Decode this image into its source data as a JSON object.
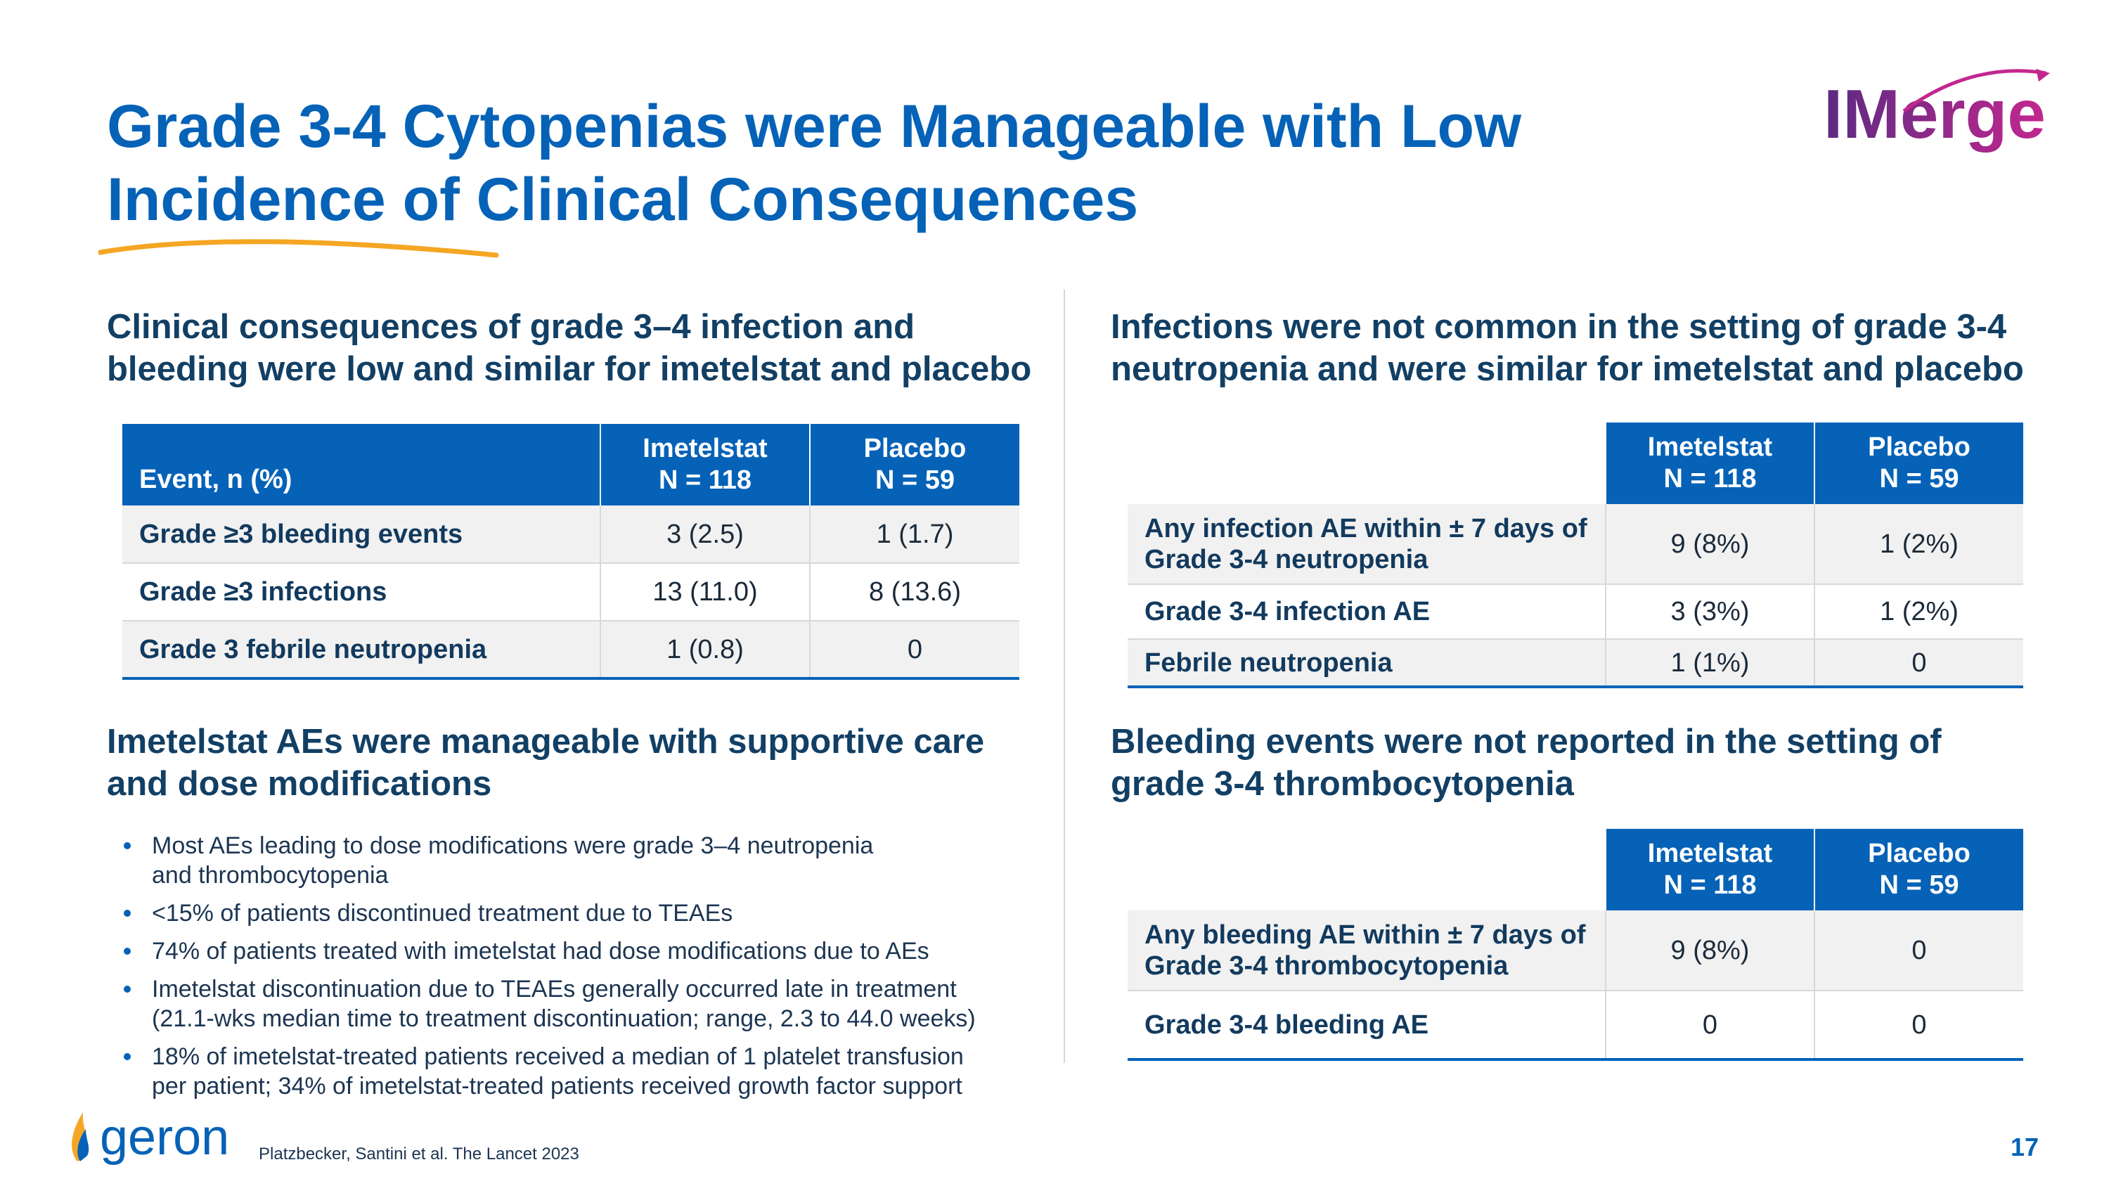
{
  "slide": {
    "title_lines": [
      "Grade 3-4 Cytopenias were Manageable with Low",
      "Incidence of Clinical Consequences"
    ],
    "logo_text": "IMerge",
    "page_number": "17",
    "citation": "Platzbecker, Santini et al. The Lancet 2023",
    "company_logo_text": "geron",
    "colors": {
      "title_blue": "#0562b7",
      "heading_navy": "#123f64",
      "accent_orange": "#f5a623",
      "logo_purple": "#5b2b82",
      "logo_magenta": "#c2278f"
    }
  },
  "top_left": {
    "heading_lines": [
      "Clinical consequences of grade 3–4 infection and",
      "bleeding were low and similar for imetelstat and placebo"
    ],
    "table": {
      "headers": {
        "event": "Event, n (%)",
        "col1_line1": "Imetelstat",
        "col1_line2": "N = 118",
        "col2_line1": "Placebo",
        "col2_line2": "N = 59"
      },
      "rows": [
        {
          "label": "Grade ≥3 bleeding events",
          "imetelstat": "3 (2.5)",
          "placebo": "1 (1.7)"
        },
        {
          "label": "Grade ≥3 infections",
          "imetelstat": "13 (11.0)",
          "placebo": "8 (13.6)"
        },
        {
          "label": "Grade 3 febrile neutropenia",
          "imetelstat": "1 (0.8)",
          "placebo": "0"
        }
      ]
    }
  },
  "top_right": {
    "heading_lines": [
      "Infections were not common in the setting of grade 3-4",
      "neutropenia and were similar for imetelstat and placebo"
    ],
    "table": {
      "headers": {
        "col1_line1": "Imetelstat",
        "col1_line2": "N = 118",
        "col2_line1": "Placebo",
        "col2_line2": "N = 59"
      },
      "rows": [
        {
          "label_line1": "Any infection AE within ± 7 days of",
          "label_line2": "Grade 3-4 neutropenia",
          "imetelstat": "9 (8%)",
          "placebo": "1 (2%)"
        },
        {
          "label_line1": "Grade 3-4 infection AE",
          "imetelstat": "3 (3%)",
          "placebo": "1 (2%)"
        },
        {
          "label_line1": "Febrile neutropenia",
          "imetelstat": "1 (1%)",
          "placebo": "0"
        }
      ]
    }
  },
  "bottom_left": {
    "heading_lines": [
      "Imetelstat AEs were manageable with supportive care",
      "and dose modifications"
    ],
    "bullets": [
      {
        "line1": "Most AEs leading to dose modifications were grade 3–4 neutropenia",
        "line2": "and thrombocytopenia"
      },
      {
        "line1": "<15% of patients discontinued treatment due to TEAEs"
      },
      {
        "line1": "74% of patients treated with imetelstat had dose modifications due to AEs"
      },
      {
        "line1": "Imetelstat discontinuation due to TEAEs generally occurred late in treatment",
        "line2": "(21.1-wks median time to treatment discontinuation; range, 2.3 to 44.0 weeks)"
      },
      {
        "line1": "18% of imetelstat-treated patients received a median of 1 platelet transfusion",
        "line2": "per patient; 34% of imetelstat-treated patients received growth factor support"
      }
    ]
  },
  "bottom_right": {
    "heading_lines": [
      "Bleeding events were not reported in the setting of",
      "grade 3-4 thrombocytopenia"
    ],
    "table": {
      "headers": {
        "col1_line1": "Imetelstat",
        "col1_line2": "N = 118",
        "col2_line1": "Placebo",
        "col2_line2": "N = 59"
      },
      "rows": [
        {
          "label_line1": "Any bleeding AE within ± 7 days of",
          "label_line2": "Grade 3-4 thrombocytopenia",
          "imetelstat": "9 (8%)",
          "placebo": "0"
        },
        {
          "label_line1": "Grade 3-4 bleeding AE",
          "imetelstat": "0",
          "placebo": "0"
        }
      ]
    }
  }
}
